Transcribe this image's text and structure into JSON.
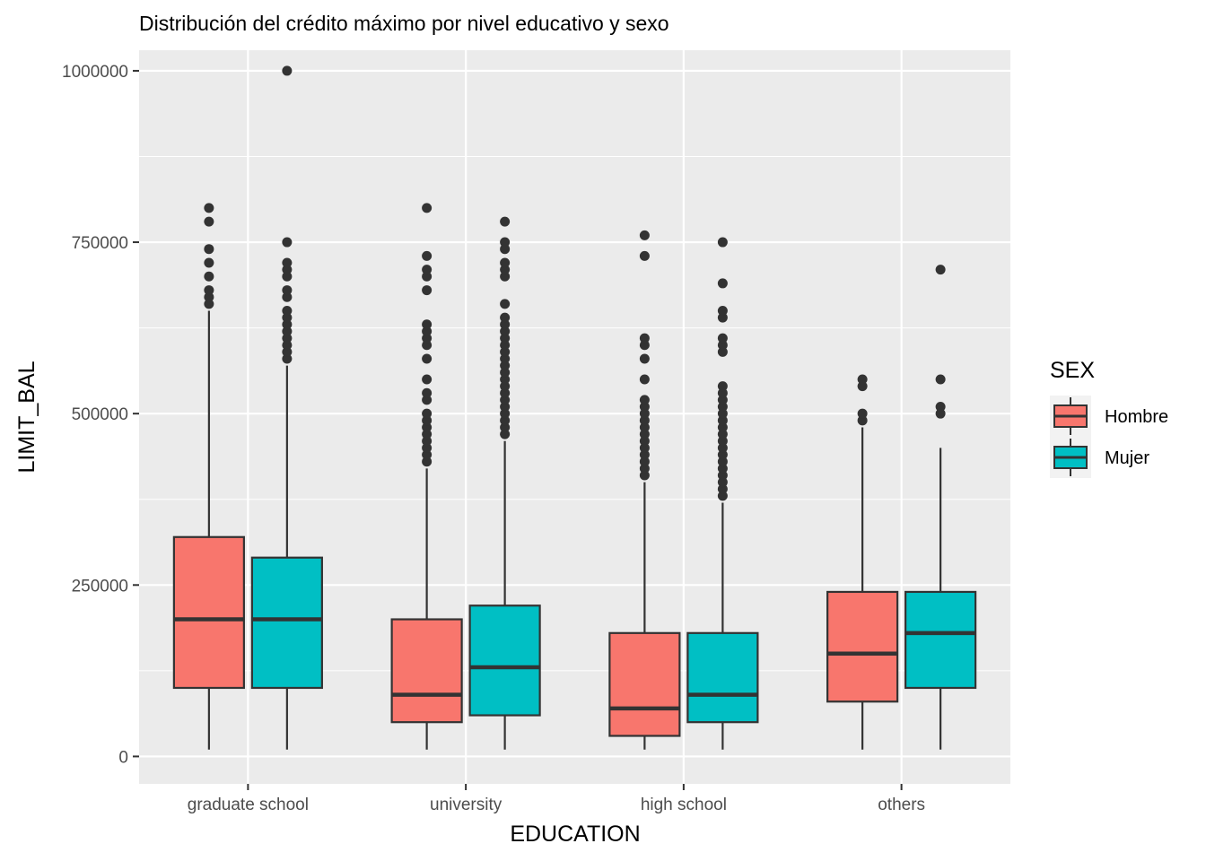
{
  "chart_data": {
    "type": "boxplot",
    "title": "Distribución del crédito máximo por nivel educativo y sexo",
    "xlabel": "EDUCATION",
    "ylabel": "LIMIT_BAL",
    "ylim": [
      -40000,
      1030000
    ],
    "y_ticks": [
      0,
      250000,
      500000,
      750000,
      1000000
    ],
    "y_tick_labels": [
      "0",
      "250000",
      "500000",
      "750000",
      "1000000"
    ],
    "categories": [
      "graduate school",
      "university",
      "high school",
      "others"
    ],
    "grid": true,
    "legend": {
      "title": "SEX",
      "position": "right"
    },
    "series": [
      {
        "name": "Hombre",
        "color": "#F8766D",
        "boxes": [
          {
            "category": "graduate school",
            "whisker_low": 10000,
            "q1": 100000,
            "median": 200000,
            "q3": 320000,
            "whisker_high": 650000,
            "outliers": [
              660000,
              670000,
              680000,
              700000,
              720000,
              740000,
              780000,
              800000
            ]
          },
          {
            "category": "university",
            "whisker_low": 10000,
            "q1": 50000,
            "median": 90000,
            "q3": 200000,
            "whisker_high": 420000,
            "outliers": [
              430000,
              440000,
              450000,
              460000,
              470000,
              480000,
              490000,
              500000,
              520000,
              530000,
              550000,
              580000,
              600000,
              610000,
              620000,
              630000,
              680000,
              700000,
              710000,
              730000,
              800000
            ]
          },
          {
            "category": "high school",
            "whisker_low": 10000,
            "q1": 30000,
            "median": 70000,
            "q3": 180000,
            "whisker_high": 400000,
            "outliers": [
              410000,
              420000,
              430000,
              440000,
              450000,
              460000,
              470000,
              480000,
              490000,
              500000,
              510000,
              520000,
              550000,
              580000,
              600000,
              610000,
              730000,
              760000
            ]
          },
          {
            "category": "others",
            "whisker_low": 10000,
            "q1": 80000,
            "median": 150000,
            "q3": 240000,
            "whisker_high": 480000,
            "outliers": [
              490000,
              500000,
              540000,
              550000
            ]
          }
        ]
      },
      {
        "name": "Mujer",
        "color": "#00BFC4",
        "boxes": [
          {
            "category": "graduate school",
            "whisker_low": 10000,
            "q1": 100000,
            "median": 200000,
            "q3": 290000,
            "whisker_high": 570000,
            "outliers": [
              580000,
              590000,
              600000,
              610000,
              620000,
              630000,
              640000,
              650000,
              670000,
              680000,
              700000,
              710000,
              720000,
              750000,
              1000000
            ]
          },
          {
            "category": "university",
            "whisker_low": 10000,
            "q1": 60000,
            "median": 130000,
            "q3": 220000,
            "whisker_high": 460000,
            "outliers": [
              470000,
              480000,
              490000,
              500000,
              510000,
              520000,
              530000,
              540000,
              550000,
              560000,
              570000,
              580000,
              590000,
              600000,
              610000,
              620000,
              630000,
              640000,
              660000,
              700000,
              710000,
              720000,
              740000,
              750000,
              780000
            ]
          },
          {
            "category": "high school",
            "whisker_low": 10000,
            "q1": 50000,
            "median": 90000,
            "q3": 180000,
            "whisker_high": 370000,
            "outliers": [
              380000,
              390000,
              400000,
              410000,
              420000,
              430000,
              440000,
              450000,
              460000,
              470000,
              480000,
              490000,
              500000,
              510000,
              520000,
              530000,
              540000,
              590000,
              600000,
              610000,
              640000,
              650000,
              690000,
              750000
            ]
          },
          {
            "category": "others",
            "whisker_low": 10000,
            "q1": 100000,
            "median": 180000,
            "q3": 240000,
            "whisker_high": 450000,
            "outliers": [
              500000,
              510000,
              550000,
              710000
            ]
          }
        ]
      }
    ]
  }
}
